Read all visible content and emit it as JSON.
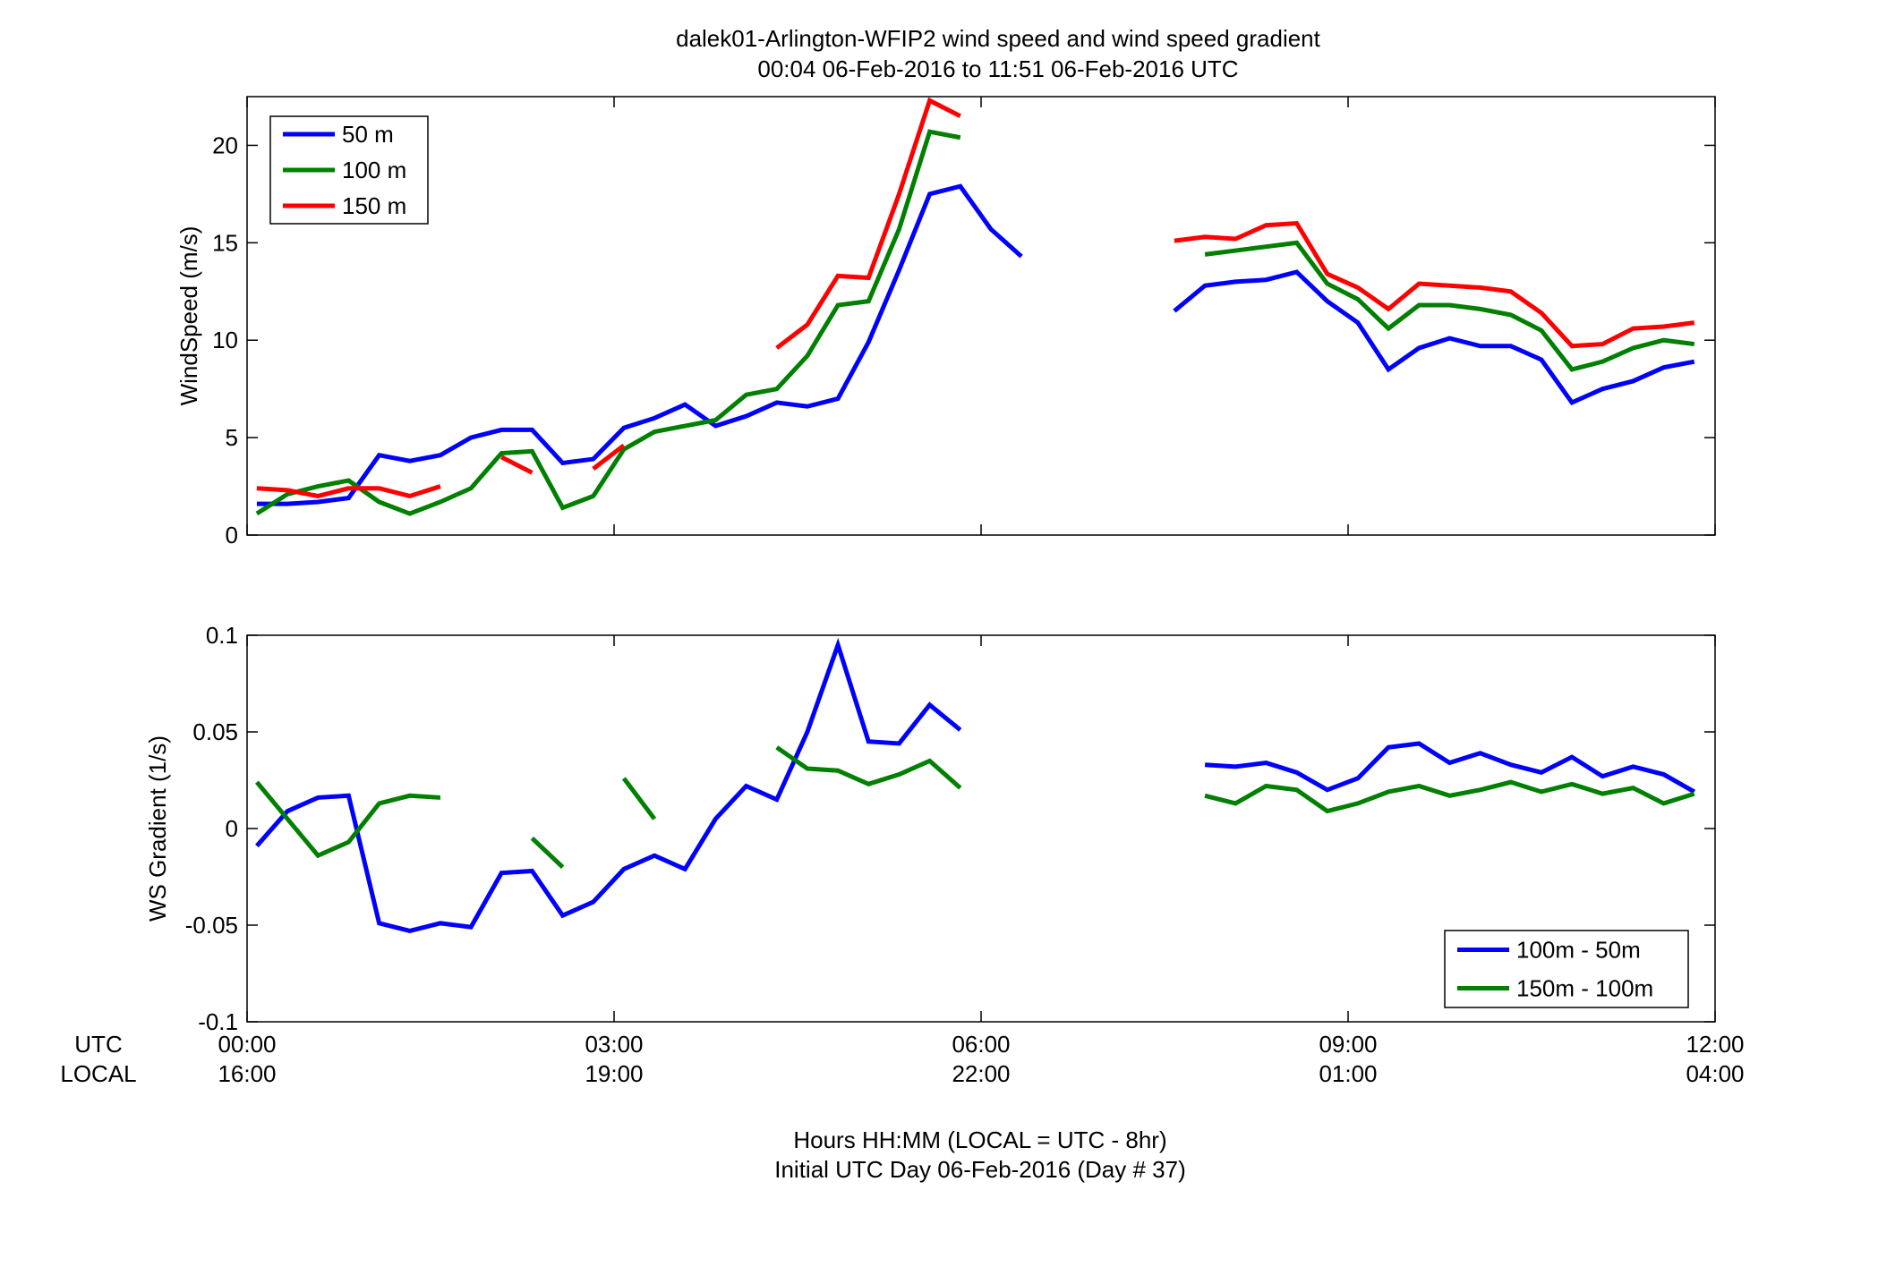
{
  "title_line1": "dalek01-Arlington-WFIP2  wind speed and wind speed gradient",
  "title_line2": "00:04 06-Feb-2016 to 11:51 06-Feb-2016  UTC",
  "x_axis": {
    "utc_label": "UTC",
    "local_label": "LOCAL",
    "xlim": [
      0,
      12
    ],
    "ticks": [
      0,
      3,
      6,
      9,
      12
    ],
    "utc_tick_labels": [
      "00:00",
      "03:00",
      "06:00",
      "09:00",
      "12:00"
    ],
    "local_tick_labels": [
      "16:00",
      "19:00",
      "22:00",
      "01:00",
      "04:00"
    ],
    "label_line1": "Hours HH:MM  (LOCAL = UTC - 8hr)",
    "label_line2": "Initial UTC Day 06-Feb-2016 (Day # 37)"
  },
  "chart_data": [
    {
      "type": "line",
      "ylabel": "WindSpeed (m/s)",
      "xlim": [
        0,
        12
      ],
      "ylim": [
        0,
        22.5
      ],
      "yticks": [
        0,
        5,
        10,
        15,
        20
      ],
      "ytick_labels": [
        "0",
        "5",
        "10",
        "15",
        "20"
      ],
      "x_units": "hours UTC",
      "legend_position": "top-left",
      "x": [
        0.08,
        0.33,
        0.58,
        0.83,
        1.08,
        1.33,
        1.58,
        1.83,
        2.08,
        2.33,
        2.58,
        2.83,
        3.08,
        3.33,
        3.58,
        3.83,
        4.08,
        4.33,
        4.58,
        4.83,
        5.08,
        5.33,
        5.58,
        5.83,
        6.08,
        6.33,
        6.58,
        6.83,
        7.08,
        7.33,
        7.58,
        7.83,
        8.08,
        8.33,
        8.58,
        8.83,
        9.08,
        9.33,
        9.58,
        9.83,
        10.08,
        10.33,
        10.58,
        10.83,
        11.08,
        11.33,
        11.58,
        11.83
      ],
      "series": [
        {
          "name": "50 m",
          "color": "#0000ff",
          "values": [
            1.6,
            1.6,
            1.7,
            1.9,
            4.1,
            3.8,
            4.1,
            5.0,
            5.4,
            5.4,
            3.7,
            3.9,
            5.5,
            6.0,
            6.7,
            5.6,
            6.1,
            6.8,
            6.6,
            7.0,
            9.9,
            13.6,
            17.5,
            17.9,
            15.7,
            14.3,
            null,
            null,
            null,
            null,
            11.5,
            12.8,
            13.0,
            13.1,
            13.5,
            12.0,
            10.9,
            8.5,
            9.6,
            10.1,
            9.7,
            9.7,
            9.0,
            6.8,
            7.5,
            7.9,
            8.6,
            8.9
          ]
        },
        {
          "name": "100 m",
          "color": "#008000",
          "values": [
            1.1,
            2.1,
            2.5,
            2.8,
            1.7,
            1.1,
            1.7,
            2.4,
            4.2,
            4.3,
            1.4,
            2.0,
            4.4,
            5.3,
            5.6,
            5.9,
            7.2,
            7.5,
            9.2,
            11.8,
            12.0,
            15.7,
            20.7,
            20.4,
            null,
            null,
            null,
            null,
            null,
            null,
            null,
            14.4,
            14.6,
            14.8,
            15.0,
            12.9,
            12.1,
            10.6,
            11.8,
            11.8,
            11.6,
            11.3,
            10.5,
            8.5,
            8.9,
            9.6,
            10.0,
            9.8
          ]
        },
        {
          "name": "150 m",
          "color": "#ff0000",
          "values": [
            2.4,
            2.3,
            2.0,
            2.4,
            2.4,
            2.0,
            2.5,
            null,
            4.0,
            3.2,
            null,
            3.4,
            4.6,
            null,
            null,
            null,
            null,
            9.6,
            10.8,
            13.3,
            13.2,
            17.5,
            22.3,
            21.5,
            null,
            null,
            null,
            null,
            null,
            null,
            15.1,
            15.3,
            15.2,
            15.9,
            16.0,
            13.4,
            12.7,
            11.6,
            12.9,
            12.8,
            12.7,
            12.5,
            11.4,
            9.7,
            9.8,
            10.6,
            10.7,
            10.9
          ]
        }
      ]
    },
    {
      "type": "line",
      "ylabel": "WS Gradient (1/s)",
      "xlim": [
        0,
        12
      ],
      "ylim": [
        -0.1,
        0.1
      ],
      "yticks": [
        -0.1,
        -0.05,
        0,
        0.05,
        0.1
      ],
      "ytick_labels": [
        "-0.1",
        "-0.05",
        "0",
        "0.05",
        "0.1"
      ],
      "x_units": "hours UTC",
      "legend_position": "bottom-right",
      "x": [
        0.08,
        0.33,
        0.58,
        0.83,
        1.08,
        1.33,
        1.58,
        1.83,
        2.08,
        2.33,
        2.58,
        2.83,
        3.08,
        3.33,
        3.58,
        3.83,
        4.08,
        4.33,
        4.58,
        4.83,
        5.08,
        5.33,
        5.58,
        5.83,
        6.08,
        6.33,
        6.58,
        6.83,
        7.08,
        7.33,
        7.58,
        7.83,
        8.08,
        8.33,
        8.58,
        8.83,
        9.08,
        9.33,
        9.58,
        9.83,
        10.08,
        10.33,
        10.58,
        10.83,
        11.08,
        11.33,
        11.58,
        11.83
      ],
      "series": [
        {
          "name": "100m - 50m",
          "color": "#0000ff",
          "values": [
            -0.009,
            0.009,
            0.016,
            0.017,
            -0.049,
            -0.053,
            -0.049,
            -0.051,
            -0.023,
            -0.022,
            -0.045,
            -0.038,
            -0.021,
            -0.014,
            -0.021,
            0.005,
            0.022,
            0.015,
            0.05,
            0.095,
            0.045,
            0.044,
            0.064,
            0.051,
            null,
            null,
            null,
            null,
            null,
            null,
            null,
            0.033,
            0.032,
            0.034,
            0.029,
            0.02,
            0.026,
            0.042,
            0.044,
            0.034,
            0.039,
            0.033,
            0.029,
            0.037,
            0.027,
            0.032,
            0.028,
            0.019
          ]
        },
        {
          "name": "150m - 100m",
          "color": "#008000",
          "values": [
            0.024,
            0.005,
            -0.014,
            -0.007,
            0.013,
            0.017,
            0.016,
            null,
            null,
            -0.005,
            -0.02,
            null,
            0.026,
            0.005,
            null,
            null,
            null,
            0.042,
            0.031,
            0.03,
            0.023,
            0.028,
            0.035,
            0.021,
            null,
            null,
            null,
            null,
            null,
            null,
            null,
            0.017,
            0.013,
            0.022,
            0.02,
            0.009,
            0.013,
            0.019,
            0.022,
            0.017,
            0.02,
            0.024,
            0.019,
            0.023,
            0.018,
            0.021,
            0.013,
            0.018
          ]
        }
      ]
    }
  ]
}
